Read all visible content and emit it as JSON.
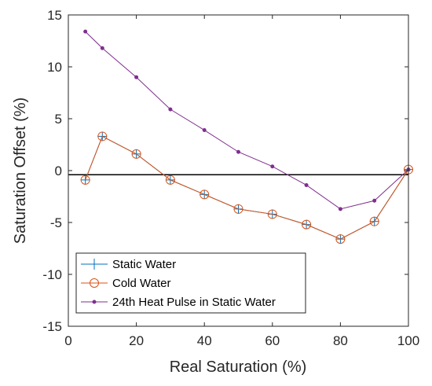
{
  "chart_data": {
    "type": "line",
    "title": "",
    "xlabel": "Real Saturation (%)",
    "ylabel": "Saturation Offset (%)",
    "xlim": [
      0,
      100
    ],
    "ylim": [
      -15,
      15
    ],
    "xticks": [
      "0",
      "20",
      "40",
      "60",
      "80",
      "100"
    ],
    "yticks": [
      "-15",
      "-10",
      "-5",
      "0",
      "5",
      "10",
      "15"
    ],
    "grid": false,
    "legend_position": "bottom-left",
    "reference_line": {
      "y": -0.4,
      "color": "#000000"
    },
    "x": [
      5,
      10,
      20,
      30,
      40,
      50,
      60,
      70,
      80,
      90,
      100
    ],
    "series": [
      {
        "name": "Static Water",
        "color": "#0072BD",
        "marker": "plus",
        "values": [
          -0.9,
          3.3,
          1.6,
          -0.9,
          -2.3,
          -3.7,
          -4.2,
          -5.2,
          -6.6,
          -4.9,
          0.1
        ]
      },
      {
        "name": "Cold Water",
        "color": "#D95319",
        "marker": "circle",
        "values": [
          -0.9,
          3.3,
          1.6,
          -0.9,
          -2.3,
          -3.7,
          -4.2,
          -5.2,
          -6.6,
          -4.9,
          0.1
        ]
      },
      {
        "name": "24th Heat Pulse in Static Water",
        "color": "#7E2F8E",
        "marker": "dot",
        "values": [
          13.4,
          11.8,
          9.0,
          5.9,
          3.9,
          1.8,
          0.4,
          -1.4,
          -3.7,
          -2.9,
          0.1
        ]
      }
    ]
  }
}
